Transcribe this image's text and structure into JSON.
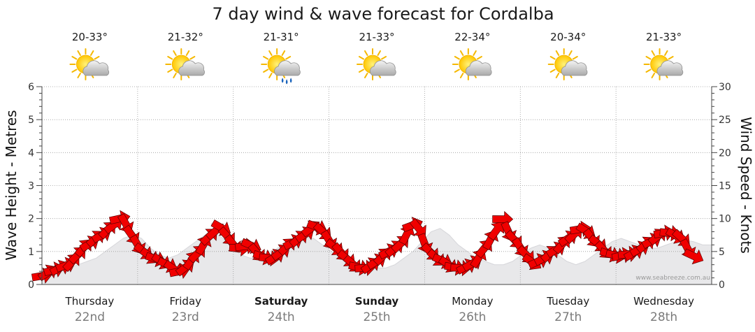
{
  "chart_data": {
    "type": "area",
    "title": "7 day wind & wave forecast for Cordalba",
    "ylabel_left": "Wave Height - Metres",
    "ylabel_right": "Wind Speed - Knots",
    "ylim_left": [
      0,
      6
    ],
    "ylim_right": [
      0,
      30
    ],
    "left_ticks": [
      "0",
      "1",
      "2",
      "3",
      "4",
      "5",
      "6"
    ],
    "right_ticks": [
      "0",
      "5",
      "10",
      "15",
      "20",
      "25",
      "30"
    ],
    "days": [
      {
        "name": "Thursday",
        "date": "22nd",
        "temp": "20-33°",
        "icon": "sun-cloud-icon",
        "bold": false
      },
      {
        "name": "Friday",
        "date": "23rd",
        "temp": "21-32°",
        "icon": "sun-cloud-icon",
        "bold": false
      },
      {
        "name": "Saturday",
        "date": "24th",
        "temp": "21-31°",
        "icon": "sun-cloud-rain-icon",
        "bold": true
      },
      {
        "name": "Sunday",
        "date": "25th",
        "temp": "21-33°",
        "icon": "sun-cloud-icon",
        "bold": true
      },
      {
        "name": "Monday",
        "date": "26th",
        "temp": "22-34°",
        "icon": "sun-cloud-icon",
        "bold": false
      },
      {
        "name": "Tuesday",
        "date": "27th",
        "temp": "20-34°",
        "icon": "sun-cloud-icon",
        "bold": false
      },
      {
        "name": "Wednesday",
        "date": "28th",
        "temp": "21-33°",
        "icon": "sun-cloud-icon",
        "bold": false
      }
    ],
    "wind_series": {
      "name": "Wind speed (knots)",
      "start_day": 0,
      "step_days": 0.0625,
      "values": [
        1.3,
        1.8,
        2.2,
        2.5,
        2.9,
        3.4,
        4.5,
        5.6,
        6.2,
        7.0,
        7.5,
        8.3,
        9.0,
        10.0,
        9.2,
        7.5,
        6.0,
        5.0,
        4.3,
        3.9,
        3.5,
        3.0,
        2.4,
        2.0,
        2.6,
        3.7,
        4.7,
        6.0,
        7.3,
        8.1,
        8.6,
        7.3,
        6.1,
        5.5,
        5.8,
        5.9,
        4.8,
        4.2,
        4.0,
        4.2,
        4.9,
        5.8,
        6.4,
        7.0,
        7.6,
        8.5,
        8.7,
        8.0,
        6.7,
        5.6,
        4.9,
        3.9,
        3.1,
        2.6,
        2.5,
        2.9,
        3.5,
        4.3,
        5.0,
        5.5,
        6.2,
        7.6,
        9.0,
        8.5,
        6.2,
        4.9,
        4.0,
        3.6,
        3.0,
        2.6,
        2.5,
        2.7,
        3.2,
        4.0,
        5.5,
        6.8,
        8.2,
        9.9,
        8.0,
        6.8,
        5.6,
        4.5,
        3.4,
        3.5,
        4.0,
        4.7,
        5.3,
        6.1,
        7.0,
        7.6,
        8.4,
        8.1,
        7.0,
        6.2,
        5.2,
        4.6,
        4.4,
        4.4,
        4.6,
        4.8,
        5.4,
        6.1,
        6.6,
        7.3,
        7.8,
        7.8,
        7.4,
        7.0,
        5.4,
        4.3
      ],
      "color": "#f00000"
    },
    "wave_series": {
      "name": "Wave height (metres)",
      "values": [
        0.3,
        0.35,
        0.4,
        0.5,
        0.6,
        0.7,
        0.8,
        1.0,
        1.2,
        1.4,
        1.5,
        1.4,
        1.1,
        0.9,
        0.8,
        0.9,
        1.1,
        1.3,
        1.5,
        1.6,
        1.4,
        1.1,
        0.9,
        0.8,
        0.8,
        0.9,
        1.1,
        1.2,
        1.4,
        1.45,
        1.4,
        1.2,
        1.0,
        0.8,
        0.7,
        0.6,
        0.55,
        0.5,
        0.5,
        0.6,
        0.8,
        1.0,
        1.3,
        1.6,
        1.7,
        1.5,
        1.2,
        1.0,
        0.8,
        0.7,
        0.6,
        0.6,
        0.7,
        0.9,
        1.1,
        1.2,
        1.1,
        0.9,
        0.7,
        0.6,
        0.7,
        0.9,
        1.1,
        1.3,
        1.4,
        1.3,
        1.2,
        1.1,
        1.1,
        1.2,
        1.3,
        1.35,
        1.3,
        1.2,
        1.2
      ],
      "color": "#e8e8ea"
    },
    "grid": true,
    "credit": "www.seabreeze.com.au"
  }
}
